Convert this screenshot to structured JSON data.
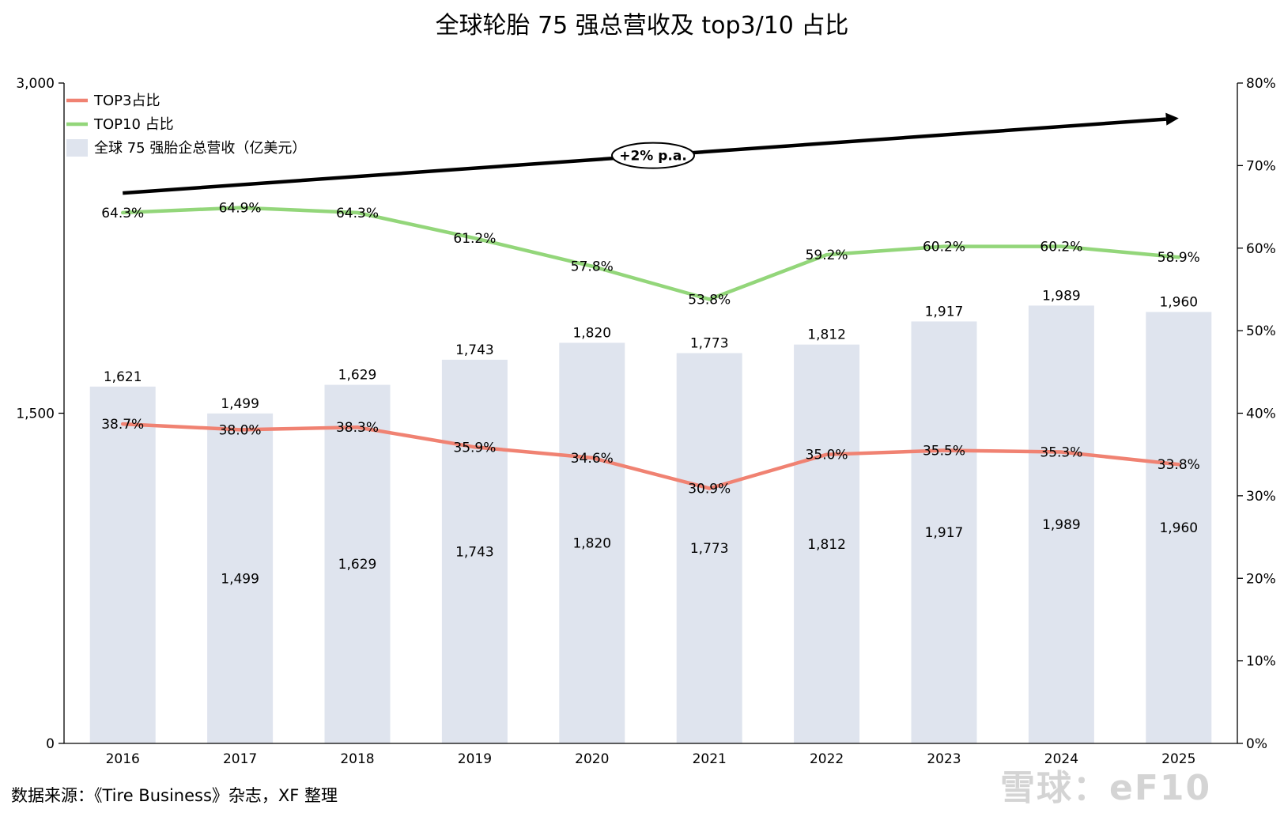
{
  "chart_data": {
    "type": "bar",
    "title": "全球轮胎 75 强总营收及 top3/10 占比",
    "categories": [
      "2016",
      "2017",
      "2018",
      "2019",
      "2020",
      "2021",
      "2022",
      "2023",
      "2024",
      "2025"
    ],
    "series": [
      {
        "name": "全球 75 强胎企总营收（亿美元）",
        "type": "bar",
        "axis": "left",
        "values": [
          1621,
          1499,
          1629,
          1743,
          1820,
          1773,
          1812,
          1917,
          1989,
          1960
        ],
        "labels": [
          "1,621",
          "1,499",
          "1,629",
          "1,743",
          "1,820",
          "1,773",
          "1,812",
          "1,917",
          "1,989",
          "1,960"
        ],
        "inner_labels": [
          "",
          "1,499",
          "1,629",
          "1,743",
          "1,820",
          "1,773",
          "1,812",
          "1,917",
          "1,989",
          "1,960"
        ],
        "inner_label_values": [
          null,
          750,
          815,
          872,
          910,
          887,
          906,
          959,
          995,
          980
        ],
        "color": "#dfe4ee"
      },
      {
        "name": "TOP3占比",
        "type": "line",
        "axis": "right",
        "values": [
          38.7,
          38.0,
          38.3,
          35.9,
          34.6,
          30.9,
          35.0,
          35.5,
          35.3,
          33.8
        ],
        "labels": [
          "38.7%",
          "38.0%",
          "38.3%",
          "35.9%",
          "34.6%",
          "30.9%",
          "35.0%",
          "35.5%",
          "35.3%",
          "33.8%"
        ],
        "color": "#f08272"
      },
      {
        "name": "TOP10 占比",
        "type": "line",
        "axis": "right",
        "values": [
          64.3,
          64.9,
          64.3,
          61.2,
          57.8,
          53.8,
          59.2,
          60.2,
          60.2,
          58.9
        ],
        "labels": [
          "64.3%",
          "64.9%",
          "64.3%",
          "61.2%",
          "57.8%",
          "53.8%",
          "59.2%",
          "60.2%",
          "60.2%",
          "58.9%"
        ],
        "color": "#93d67a"
      }
    ],
    "y_left": {
      "ylim": [
        0,
        3000
      ],
      "ticks": [
        0,
        1500,
        3000
      ],
      "tick_labels": [
        "0",
        "1,500",
        "3,000"
      ]
    },
    "y_right": {
      "ylim": [
        0,
        80
      ],
      "ticks": [
        0,
        10,
        20,
        30,
        40,
        50,
        60,
        70,
        80
      ],
      "tick_labels": [
        "0%",
        "10%",
        "20%",
        "30%",
        "40%",
        "50%",
        "60%",
        "70%",
        "80%"
      ]
    },
    "trend_arrow": {
      "label": "+2% p.a.",
      "from": {
        "x": "2016",
        "y": 2500
      },
      "to": {
        "x": "2025",
        "y": 2840
      }
    },
    "legend_position": "top-left",
    "grid": false
  },
  "source": "数据来源：《Tire Business》杂志，XF 整理",
  "watermark": "雪球：eF10"
}
